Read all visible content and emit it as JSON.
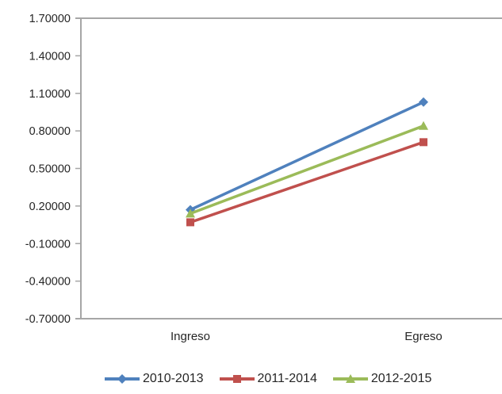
{
  "chart_data": {
    "type": "line",
    "title": "",
    "xlabel": "",
    "ylabel": "",
    "categories": [
      "Ingreso",
      "Egreso"
    ],
    "series": [
      {
        "name": "2010-2013",
        "color": "#4F81BD",
        "marker": "diamond",
        "values": [
          0.17,
          1.03
        ]
      },
      {
        "name": "2011-2014",
        "color": "#C0504D",
        "marker": "square",
        "values": [
          0.07,
          0.71
        ]
      },
      {
        "name": "2012-2015",
        "color": "#9BBB59",
        "marker": "triangle",
        "values": [
          0.14,
          0.84
        ]
      }
    ],
    "ylim": [
      -0.7,
      1.7
    ],
    "ytick_step": 0.3,
    "ytick_labels_top_to_bottom": [
      "1.70000",
      "1.40000",
      "1.10000",
      "0.80000",
      "0.50000",
      "0.20000",
      "-0.10000",
      "-0.40000",
      "-0.70000"
    ],
    "grid": false,
    "legend_position": "bottom"
  },
  "colors": {
    "background": "#FFFFFF",
    "axis": "#A6A6A6",
    "text": "#262626"
  }
}
